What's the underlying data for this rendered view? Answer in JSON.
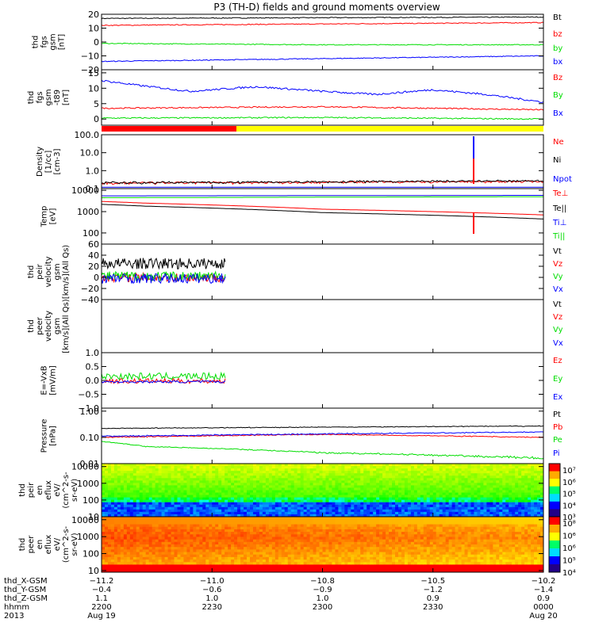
{
  "chart_data": {
    "type": "line",
    "title": "P3 (TH-D) fields and ground moments overview",
    "time_ticks": [
      {
        "date": "2013-08-19",
        "hhmm": "2200"
      },
      {
        "date": "2013-08-19",
        "hhmm": "2230"
      },
      {
        "date": "2013-08-19",
        "hhmm": "2300"
      },
      {
        "date": "2013-08-19",
        "hhmm": "2330"
      },
      {
        "date": "2013-08-20",
        "hhmm": "0000"
      }
    ],
    "panels": [
      {
        "ylabel": [
          "thd",
          "fgs",
          "gsm",
          "[nT]"
        ],
        "ylim": [
          -20,
          20
        ],
        "ticks": [
          {
            "v": 20,
            "t": "20"
          },
          {
            "v": 10,
            "t": "10"
          },
          {
            "v": 0,
            "t": "0"
          },
          {
            "v": -10,
            "t": "−10"
          },
          {
            "v": -20,
            "t": "−20"
          }
        ],
        "series": [
          {
            "name": "Bt",
            "color": "#000000",
            "x": [
              0,
              0.5,
              1
            ],
            "y": [
              17,
              17.5,
              18
            ],
            "noise": 0.3
          },
          {
            "name": "bz",
            "color": "#ff0000",
            "x": [
              0,
              0.5,
              1
            ],
            "y": [
              12,
              13,
              14
            ],
            "noise": 0.3
          },
          {
            "name": "by",
            "color": "#00dd00",
            "x": [
              0,
              0.5,
              1
            ],
            "y": [
              -1,
              -2,
              -2
            ],
            "noise": 0.3
          },
          {
            "name": "bx",
            "color": "#0000ff",
            "x": [
              0,
              0.5,
              1
            ],
            "y": [
              -14,
              -12,
              -10
            ],
            "noise": 0.3
          }
        ]
      },
      {
        "ylabel": [
          "thd",
          "fgs",
          "gsm",
          "-t89",
          "[nT]"
        ],
        "ylim": [
          -2,
          16
        ],
        "ticks": [
          {
            "v": 15,
            "t": "15"
          },
          {
            "v": 10,
            "t": "10"
          },
          {
            "v": 5,
            "t": "5"
          },
          {
            "v": 0,
            "t": "0"
          }
        ],
        "series": [
          {
            "name": "Bz",
            "color": "#ff0000",
            "x": [
              0,
              0.5,
              1
            ],
            "y": [
              3.5,
              4,
              3
            ],
            "noise": 0.2
          },
          {
            "name": "By",
            "color": "#00dd00",
            "x": [
              0,
              0.5,
              1
            ],
            "y": [
              0.3,
              0.5,
              0
            ],
            "noise": 0.2
          },
          {
            "name": "Bx",
            "color": "#0000ff",
            "x": [
              0,
              0.08,
              0.2,
              0.35,
              0.5,
              0.62,
              0.75,
              0.87,
              1
            ],
            "y": [
              12.5,
              11,
              9,
              10.5,
              9,
              8,
              9.5,
              8,
              5.5
            ],
            "noise": 0.3
          }
        ]
      },
      {
        "ylabel": [
          "Density",
          "[1/cc]",
          "[cm-3]"
        ],
        "ylim": [
          0.1,
          100
        ],
        "log": true,
        "ticks": [
          {
            "v": 100,
            "t": "100.0"
          },
          {
            "v": 10,
            "t": "10.0"
          },
          {
            "v": 1,
            "t": "1.0"
          },
          {
            "v": 0.1,
            "t": "0.1"
          }
        ],
        "series": [
          {
            "name": "Ne",
            "color": "#ff0000",
            "x": [
              0,
              1
            ],
            "y": [
              0.2,
              0.25
            ],
            "noise": 0.02
          },
          {
            "name": "Ni",
            "color": "#000000",
            "x": [
              0,
              1
            ],
            "y": [
              0.21,
              0.27
            ],
            "noise": 0.02
          },
          {
            "name": "Npot",
            "color": "#0000ff",
            "x": [
              0,
              1
            ],
            "y": [
              0.12,
              0.12
            ],
            "noise": 0.0
          }
        ]
      },
      {
        "ylabel": [
          "Temp",
          "[eV]"
        ],
        "ylim": [
          30,
          12000
        ],
        "log": true,
        "ticks": [
          {
            "v": 10000,
            "t": "10000"
          },
          {
            "v": 1000,
            "t": "1000"
          },
          {
            "v": 100,
            "t": "100"
          }
        ],
        "series": [
          {
            "name": "Te⊥",
            "color": "#ff0000",
            "x": [
              0,
              0.1,
              0.5,
              1
            ],
            "y": [
              3000,
              2500,
              1300,
              700
            ],
            "noise": 0.03
          },
          {
            "name": "Te||",
            "color": "#000000",
            "x": [
              0,
              0.1,
              0.5,
              1
            ],
            "y": [
              2200,
              1800,
              900,
              450
            ],
            "noise": 0.03
          },
          {
            "name": "Ti⊥",
            "color": "#0000ff",
            "x": [
              0,
              1
            ],
            "y": [
              5500,
              5800
            ],
            "noise": 0.04
          },
          {
            "name": "Ti||",
            "color": "#00dd00",
            "x": [
              0,
              1
            ],
            "y": [
              4500,
              5000
            ],
            "noise": 0.04
          }
        ]
      },
      {
        "ylabel": [
          "thd",
          "peir",
          "velocity",
          "gsm",
          "[km/s](All Qs)"
        ],
        "ylim": [
          -40,
          60
        ],
        "ticks": [
          {
            "v": 60,
            "t": "60"
          },
          {
            "v": 40,
            "t": "40"
          },
          {
            "v": 20,
            "t": "20"
          },
          {
            "v": 0,
            "t": "0"
          },
          {
            "v": -20,
            "t": "−20"
          },
          {
            "v": -40,
            "t": "−40"
          }
        ],
        "series": [
          {
            "name": "Vt",
            "color": "#000000",
            "x": [
              0,
              0.28
            ],
            "y": [
              25,
              25
            ],
            "noise": 10
          },
          {
            "name": "Vz",
            "color": "#ff0000",
            "x": [
              0,
              0.28
            ],
            "y": [
              0,
              0
            ],
            "noise": 8
          },
          {
            "name": "Vy",
            "color": "#00dd00",
            "x": [
              0,
              0.28
            ],
            "y": [
              2,
              2
            ],
            "noise": 9
          },
          {
            "name": "Vx",
            "color": "#0000ff",
            "x": [
              0,
              0.28
            ],
            "y": [
              -2,
              -2
            ],
            "noise": 9
          }
        ]
      },
      {
        "ylabel": [
          "thd",
          "peer",
          "velocity",
          "gsm",
          "[km/s](All Qs)"
        ],
        "ylim": [
          -1,
          1
        ],
        "ticks": [],
        "series": [
          {
            "name": "Vt",
            "color": "#000000",
            "x": [],
            "y": []
          },
          {
            "name": "Vz",
            "color": "#ff0000",
            "x": [],
            "y": []
          },
          {
            "name": "Vy",
            "color": "#00dd00",
            "x": [],
            "y": []
          },
          {
            "name": "Vx",
            "color": "#0000ff",
            "x": [],
            "y": []
          }
        ]
      },
      {
        "ylabel": [
          "E=-VxB",
          "[mV/m]"
        ],
        "ylim": [
          -1,
          1
        ],
        "ticks": [
          {
            "v": 1,
            "t": "1.0"
          },
          {
            "v": 0.5,
            "t": "0.5"
          },
          {
            "v": 0,
            "t": "0.0"
          },
          {
            "v": -0.5,
            "t": "−0.5"
          },
          {
            "v": -1,
            "t": "−1.0"
          }
        ],
        "series": [
          {
            "name": "Ez",
            "color": "#ff0000",
            "x": [
              0,
              0.28
            ],
            "y": [
              -0.02,
              -0.02
            ],
            "noise": 0.09
          },
          {
            "name": "Ey",
            "color": "#00dd00",
            "x": [
              0,
              0.28
            ],
            "y": [
              0.15,
              0.15
            ],
            "noise": 0.12
          },
          {
            "name": "Ex",
            "color": "#0000ff",
            "x": [
              0,
              0.28
            ],
            "y": [
              -0.05,
              -0.05
            ],
            "noise": 0.04
          }
        ]
      },
      {
        "ylabel": [
          "Pressure",
          "[nPa]"
        ],
        "ylim": [
          0.01,
          1.3
        ],
        "log": true,
        "ticks": [
          {
            "v": 1,
            "t": "1.00"
          },
          {
            "v": 0.1,
            "t": "0.10"
          },
          {
            "v": 0.01,
            "t": "0.01"
          }
        ],
        "series": [
          {
            "name": "Pt",
            "color": "#000000",
            "x": [
              0,
              1
            ],
            "y": [
              0.22,
              0.27
            ],
            "noise": 0.005
          },
          {
            "name": "Pb",
            "color": "#ff0000",
            "x": [
              0,
              0.5,
              1
            ],
            "y": [
              0.1,
              0.13,
              0.1
            ],
            "noise": 0.003
          },
          {
            "name": "Pe",
            "color": "#00dd00",
            "x": [
              0,
              0.1,
              0.5,
              1
            ],
            "y": [
              0.07,
              0.045,
              0.026,
              0.016
            ],
            "noise": 0.001
          },
          {
            "name": "Pi",
            "color": "#0000ff",
            "x": [
              0,
              1
            ],
            "y": [
              0.11,
              0.16
            ],
            "noise": 0.004
          }
        ]
      },
      {
        "ylabel": [
          "thd",
          "peir",
          "en",
          "eflux",
          "eV/",
          "(cm^2-s-",
          "sr-eV)"
        ],
        "ylim": [
          10,
          15000
        ],
        "log": true,
        "ticks": [
          {
            "v": 10000,
            "t": "10000"
          },
          {
            "v": 1000,
            "t": "1000"
          },
          {
            "v": 100,
            "t": "100"
          },
          {
            "v": 10,
            "t": "10"
          }
        ],
        "colorbar": [
          "10⁷",
          "10⁶",
          "10⁵",
          "10⁴",
          "10³"
        ]
      },
      {
        "ylabel": [
          "thd",
          "peer",
          "en",
          "eflux",
          "eV/",
          "(cm^2-s-",
          "sr-eV)"
        ],
        "ylim": [
          8,
          15000
        ],
        "log": true,
        "ticks": [
          {
            "v": 10000,
            "t": "10000"
          },
          {
            "v": 1000,
            "t": "1000"
          },
          {
            "v": 100,
            "t": "100"
          },
          {
            "v": 10,
            "t": "10"
          }
        ],
        "colorbar": [
          "10⁸",
          "10⁶",
          "10⁶",
          "10⁵",
          "10⁴"
        ]
      }
    ],
    "footer": {
      "rows": [
        {
          "label": "thd_X-GSM",
          "values": [
            "−11.2",
            "−11.0",
            "−10.8",
            "−10.5",
            "−10.2"
          ]
        },
        {
          "label": "thd_Y-GSM",
          "values": [
            "−0.4",
            "−0.6",
            "−0.9",
            "−1.2",
            "−1.4"
          ]
        },
        {
          "label": "thd_Z-GSM",
          "values": [
            "1.1",
            "1.0",
            "1.0",
            "0.9",
            "0.9"
          ]
        },
        {
          "label": "hhmm",
          "values": [
            "2200",
            "2230",
            "2300",
            "2330",
            "0000"
          ]
        },
        {
          "label": "2013",
          "values": [
            "Aug 19",
            "",
            "",
            "",
            "Aug 20"
          ]
        }
      ]
    },
    "colors": {
      "axis": "#000000",
      "bar_red": "#ff0000",
      "bar_yellow": "#ffff00"
    }
  }
}
